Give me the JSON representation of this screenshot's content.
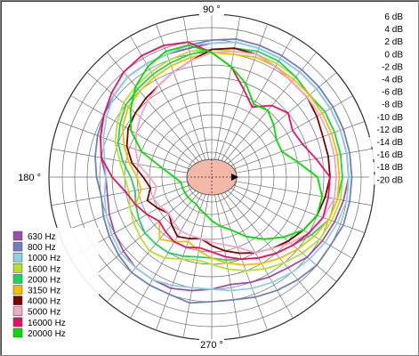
{
  "chart_data": {
    "type": "polar",
    "angle_labels": [
      "90 °",
      "180 °",
      "270 °"
    ],
    "radial_ticks": [
      "6 dB",
      "4 dB",
      "2 dB",
      "0 dB",
      "-2 dB",
      "-4 dB",
      "-6 dB",
      "-8 dB",
      "-10 dB",
      "-12 dB",
      "-14 dB",
      "-16 dB",
      "-18 dB",
      "-20 dB"
    ],
    "r_range_db": [
      -20,
      6
    ],
    "angular_grid_step_deg": 10,
    "legend_placement": "bottom-left",
    "series": [
      {
        "name": "630 Hz",
        "color": "#9b4fa8",
        "r_db": [
          2,
          2,
          2,
          2,
          2,
          2,
          2,
          2,
          2,
          1.5,
          1,
          1,
          1,
          1,
          0.5,
          0,
          -1,
          -2,
          -3,
          -3,
          -2.5,
          -2,
          -1.5,
          -1,
          -1,
          -1,
          -1.5,
          -2,
          -2.5,
          -2,
          -1.5,
          -1,
          0,
          0.5,
          1,
          1.5
        ]
      },
      {
        "name": "800 Hz",
        "color": "#7080b8",
        "r_db": [
          2.5,
          2.5,
          2.5,
          2.5,
          2.5,
          2.5,
          2.5,
          2.5,
          2.5,
          2,
          1.5,
          1,
          1,
          1,
          0.5,
          0,
          -0.5,
          -1,
          -1.5,
          -2,
          -1.5,
          -1,
          -0.5,
          0,
          0,
          0,
          0.5,
          0,
          0,
          0.5,
          1,
          1.5,
          2,
          2,
          2.5,
          2.5
        ]
      },
      {
        "name": "1000 Hz",
        "color": "#8ed0e0",
        "r_db": [
          2,
          2,
          2,
          2,
          2,
          2,
          2,
          2,
          2,
          1.5,
          1.5,
          1,
          1,
          1,
          0.5,
          -0.5,
          -1.5,
          -2.5,
          -3,
          -2.5,
          -2,
          -1.5,
          -1,
          -1,
          -1,
          -1.5,
          -2,
          -2,
          -1.5,
          -1,
          -0.5,
          0,
          0.5,
          1,
          1.5,
          2
        ]
      },
      {
        "name": "1600 Hz",
        "color": "#b8e02a",
        "r_db": [
          1,
          1,
          1,
          1,
          0.5,
          1,
          1,
          1,
          0.5,
          0.5,
          0.5,
          0,
          -0.5,
          -1,
          -1.5,
          -2.5,
          -3.5,
          -5,
          -6,
          -6.5,
          -6,
          -5.5,
          -5,
          -4.5,
          -5,
          -6,
          -6.5,
          -6,
          -5,
          -4,
          -3,
          -2,
          -1,
          0,
          0.5,
          1
        ]
      },
      {
        "name": "2000 Hz",
        "color": "#20d060",
        "r_db": [
          1,
          1,
          1,
          1,
          0.5,
          1,
          1.5,
          1.5,
          1,
          0.5,
          0,
          -0.5,
          -1,
          -1.5,
          -2,
          -3,
          -4,
          -5.5,
          -7,
          -7.5,
          -7,
          -6.5,
          -6,
          -6,
          -6,
          -6.5,
          -7,
          -7,
          -6.5,
          -6,
          -5,
          -4,
          -3,
          -1.5,
          0,
          0.5
        ]
      },
      {
        "name": "3150 Hz",
        "color": "#f0c000",
        "r_db": [
          0.5,
          0.5,
          0.5,
          0.5,
          0.5,
          0.5,
          0.5,
          0.5,
          0,
          0,
          -0.5,
          -1,
          -1.5,
          -2,
          -2.5,
          -3.5,
          -5,
          -6.5,
          -8,
          -8.5,
          -7,
          -8,
          -9,
          -7,
          -8,
          -9,
          -8,
          -7,
          -6,
          -5,
          -4,
          -3,
          -2,
          -1,
          0,
          0.5
        ]
      },
      {
        "name": "4000 Hz",
        "color": "#800000",
        "r_db": [
          -1,
          -1,
          -1,
          -0.5,
          0,
          0,
          0.5,
          1,
          1,
          0.5,
          -1,
          -2,
          -3,
          -3.5,
          -4,
          -4.5,
          -5.5,
          -7,
          -9,
          -10,
          -9,
          -10,
          -11,
          -10,
          -9,
          -9.5,
          -10,
          -9,
          -8,
          -7,
          -6,
          -5,
          -4,
          -3,
          -2,
          -1.5
        ]
      },
      {
        "name": "5000 Hz",
        "color": "#f4a8c8",
        "r_db": [
          0,
          0,
          0,
          0,
          0,
          0,
          0.5,
          1,
          0.5,
          0,
          -1,
          -2,
          -3,
          -4,
          -5,
          -6,
          -7,
          -8,
          -10,
          -11,
          -10,
          -10.5,
          -11,
          -10.5,
          -10,
          -10,
          -10,
          -9.5,
          -9,
          -8,
          -6,
          -5,
          -3.5,
          -2,
          -1,
          0
        ]
      },
      {
        "name": "16000 Hz",
        "color": "#e8106a",
        "r_db": [
          -1,
          -3,
          -4.5,
          -5,
          -4,
          -5,
          -7,
          -5,
          -2,
          0,
          2,
          2.5,
          2.5,
          2,
          1,
          0,
          -1,
          -2,
          -4,
          -6,
          -7,
          -8,
          -9,
          -8.5,
          -8,
          -8,
          -8.5,
          -8,
          -7,
          -6,
          -5,
          -4,
          -3,
          -2,
          -1,
          -1
        ]
      },
      {
        "name": "20000 Hz",
        "color": "#00e000",
        "r_db": [
          -3,
          -6,
          -8,
          -8,
          -7,
          -6,
          -6.5,
          -4,
          -2,
          0,
          1.5,
          1.5,
          0.5,
          -1,
          -3,
          -5,
          -8,
          -12,
          -14,
          -15,
          -15,
          -15,
          -15,
          -15,
          -15,
          -14.5,
          -14,
          -13,
          -12,
          -11,
          -9,
          -7,
          -5,
          -3,
          -2,
          -2
        ]
      }
    ]
  }
}
